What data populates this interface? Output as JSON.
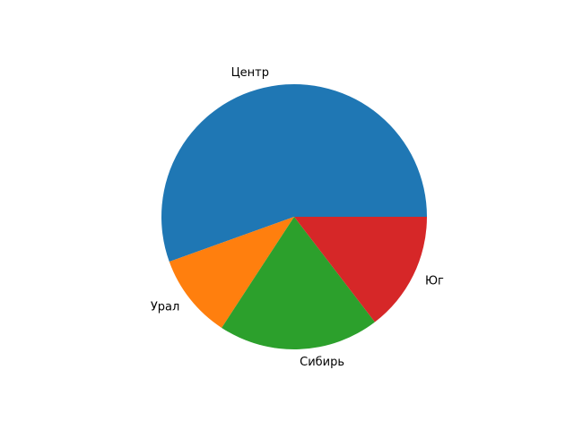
{
  "chart_data": {
    "type": "pie",
    "categories": [
      "Центр",
      "Урал",
      "Сибирь",
      "Юг"
    ],
    "values": [
      55.5,
      10.3,
      19.6,
      14.6
    ],
    "colors": [
      "#1f77b4",
      "#ff7f0e",
      "#2ca02c",
      "#d62728"
    ],
    "start_angle": 0,
    "direction": "counterclockwise"
  }
}
